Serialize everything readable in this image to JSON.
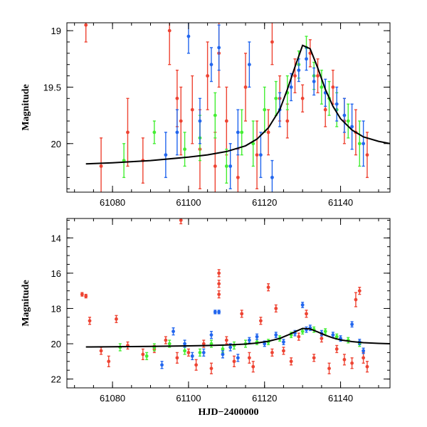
{
  "chart_data": [
    {
      "type": "scatter",
      "panel": "top",
      "title": "",
      "xlabel": "",
      "ylabel": "Magnitude",
      "xlim": [
        61068,
        61153
      ],
      "ylim": [
        20.43,
        18.93
      ],
      "y_inverted": true,
      "grid": false,
      "xticks": [
        61080,
        61100,
        61120,
        61140
      ],
      "yticks": [
        19,
        19.5,
        20
      ],
      "ytick_labels": [
        "19",
        "19.5",
        "20"
      ],
      "model_curve": {
        "name": "model",
        "color": "#000000",
        "x": [
          61073,
          61080,
          61090,
          61100,
          61105,
          61110,
          61115,
          61118,
          61121,
          61124,
          61126,
          61128,
          61130,
          61132,
          61134,
          61136,
          61138,
          61140,
          61143,
          61146,
          61150,
          61153
        ],
        "y": [
          20.18,
          20.17,
          20.15,
          20.12,
          20.1,
          20.07,
          20.02,
          19.96,
          19.86,
          19.7,
          19.52,
          19.32,
          19.13,
          19.16,
          19.33,
          19.52,
          19.67,
          19.78,
          19.88,
          19.94,
          19.98,
          20.0
        ]
      },
      "series": [
        {
          "name": "red",
          "color": "#ee4433",
          "x": [
            61073,
            61077,
            61084,
            61088,
            61095,
            61097,
            61098,
            61101,
            61103,
            61105,
            61107,
            61108,
            61110,
            61113,
            61115,
            61118,
            61121,
            61122,
            61124,
            61126,
            61128,
            61130,
            61132,
            61134,
            61136,
            61138,
            61141,
            61144,
            61147
          ],
          "y": [
            18.95,
            20.2,
            19.9,
            20.15,
            19.0,
            19.6,
            19.8,
            19.7,
            20.05,
            19.4,
            20.2,
            19.2,
            19.8,
            20.3,
            19.5,
            20.1,
            19.9,
            19.1,
            19.6,
            19.8,
            19.4,
            19.6,
            19.2,
            19.4,
            19.7,
            19.5,
            19.8,
            19.9,
            20.1
          ],
          "err": [
            0.15,
            0.25,
            0.3,
            0.2,
            0.3,
            0.25,
            0.3,
            0.3,
            0.35,
            0.3,
            0.3,
            0.3,
            0.3,
            0.25,
            0.3,
            0.3,
            0.2,
            0.2,
            0.2,
            0.15,
            0.15,
            0.12,
            0.12,
            0.15,
            0.15,
            0.15,
            0.2,
            0.2,
            0.2
          ]
        },
        {
          "name": "green",
          "color": "#44ee33",
          "x": [
            61083,
            61091,
            61099,
            61103,
            61107,
            61110,
            61114,
            61117,
            61120,
            61123,
            61126,
            61129,
            61131,
            61133,
            61135,
            61137,
            61139,
            61142,
            61145
          ],
          "y": [
            20.15,
            19.9,
            20.05,
            19.95,
            19.75,
            20.2,
            19.9,
            20.0,
            19.7,
            19.6,
            19.55,
            19.3,
            19.15,
            19.4,
            19.5,
            19.6,
            19.7,
            19.8,
            20.0
          ],
          "err": [
            0.15,
            0.1,
            0.15,
            0.2,
            0.2,
            0.15,
            0.2,
            0.2,
            0.2,
            0.15,
            0.15,
            0.12,
            0.1,
            0.12,
            0.15,
            0.15,
            0.15,
            0.15,
            0.2
          ]
        },
        {
          "name": "blue",
          "color": "#2266ee",
          "x": [
            61094,
            61097,
            61100,
            61103,
            61106,
            61108,
            61111,
            61113,
            61116,
            61119,
            61122,
            61124,
            61127,
            61129,
            61131,
            61133,
            61136,
            61139,
            61141,
            61143,
            61146
          ],
          "y": [
            20.1,
            19.9,
            19.05,
            19.8,
            19.3,
            19.15,
            20.2,
            19.9,
            19.3,
            20.1,
            20.3,
            19.7,
            19.5,
            19.35,
            19.25,
            19.45,
            19.55,
            19.65,
            19.75,
            19.85,
            20.0
          ],
          "err": [
            0.2,
            0.2,
            0.15,
            0.2,
            0.15,
            0.2,
            0.2,
            0.2,
            0.2,
            0.2,
            0.15,
            0.15,
            0.12,
            0.1,
            0.1,
            0.12,
            0.12,
            0.15,
            0.15,
            0.2,
            0.2
          ]
        }
      ]
    },
    {
      "type": "scatter",
      "panel": "bottom",
      "title": "",
      "xlabel": "HJD−2400000",
      "ylabel": "Magnitude",
      "xlim": [
        61068,
        61153
      ],
      "ylim": [
        22.5,
        12.9
      ],
      "y_inverted": true,
      "grid": false,
      "xticks": [
        61080,
        61100,
        61120,
        61140
      ],
      "yticks": [
        14,
        16,
        18,
        20,
        22
      ],
      "ytick_labels": [
        "14",
        "16",
        "18",
        "20",
        "22"
      ],
      "model_curve": {
        "name": "model",
        "color": "#000000",
        "x": [
          61073,
          61080,
          61090,
          61100,
          61105,
          61110,
          61115,
          61118,
          61121,
          61124,
          61126,
          61128,
          61130,
          61132,
          61134,
          61136,
          61138,
          61140,
          61143,
          61146,
          61150,
          61153
        ],
        "y": [
          20.18,
          20.17,
          20.15,
          20.12,
          20.1,
          20.07,
          20.02,
          19.96,
          19.86,
          19.7,
          19.52,
          19.32,
          19.13,
          19.16,
          19.33,
          19.52,
          19.67,
          19.78,
          19.88,
          19.94,
          19.98,
          20.0
        ]
      },
      "series": [
        {
          "name": "red",
          "color": "#ee4433",
          "x": [
            61072,
            61073,
            61074,
            61077,
            61079,
            61081,
            61084,
            61088,
            61091,
            61094,
            61097,
            61098,
            61100,
            61102,
            61104,
            61106,
            61108,
            61108,
            61108,
            61110,
            61112,
            61114,
            61116,
            61117,
            61119,
            61121,
            61122,
            61123,
            61125,
            61127,
            61129,
            61131,
            61133,
            61135,
            61137,
            61139,
            61141,
            61143,
            61144,
            61145,
            61146,
            61147
          ],
          "y": [
            17.2,
            17.3,
            18.7,
            20.4,
            21.0,
            18.6,
            20.1,
            20.6,
            20.3,
            19.8,
            20.8,
            13.0,
            20.5,
            21.2,
            20.0,
            21.4,
            16.0,
            16.6,
            17.2,
            19.8,
            21.0,
            18.3,
            20.8,
            21.3,
            18.7,
            16.8,
            20.5,
            18.0,
            20.4,
            21.0,
            19.6,
            18.3,
            20.8,
            19.7,
            21.4,
            20.3,
            20.9,
            21.1,
            17.5,
            17.0,
            20.8,
            21.3
          ],
          "err": [
            0.1,
            0.1,
            0.2,
            0.2,
            0.3,
            0.2,
            0.2,
            0.3,
            0.2,
            0.2,
            0.3,
            0.2,
            0.2,
            0.3,
            0.2,
            0.3,
            0.2,
            0.2,
            0.2,
            0.2,
            0.3,
            0.2,
            0.3,
            0.3,
            0.2,
            0.2,
            0.2,
            0.2,
            0.2,
            0.2,
            0.2,
            0.2,
            0.2,
            0.2,
            0.3,
            0.2,
            0.3,
            0.3,
            0.4,
            0.2,
            0.3,
            0.3
          ]
        },
        {
          "name": "green",
          "color": "#44ee33",
          "x": [
            61082,
            61089,
            61091,
            61095,
            61099,
            61103,
            61106,
            61109,
            61112,
            61115,
            61118,
            61121,
            61124,
            61127,
            61130,
            61133,
            61136,
            61139,
            61142,
            61145
          ],
          "y": [
            20.2,
            20.7,
            20.2,
            20.0,
            20.4,
            20.5,
            20.0,
            20.3,
            20.1,
            20.0,
            19.9,
            19.9,
            19.7,
            19.5,
            19.3,
            19.2,
            19.3,
            19.6,
            19.8,
            20.0
          ],
          "err": [
            0.2,
            0.2,
            0.2,
            0.2,
            0.2,
            0.2,
            0.2,
            0.2,
            0.2,
            0.2,
            0.15,
            0.15,
            0.15,
            0.15,
            0.15,
            0.15,
            0.15,
            0.15,
            0.15,
            0.15
          ]
        },
        {
          "name": "blue",
          "color": "#2266ee",
          "x": [
            61093,
            61096,
            61099,
            61101,
            61104,
            61106,
            61107,
            61108,
            61109,
            61111,
            61113,
            61116,
            61118,
            61120,
            61123,
            61125,
            61128,
            61130,
            61131,
            61132,
            61135,
            61138,
            61140,
            61143,
            61145,
            61146
          ],
          "y": [
            21.2,
            19.3,
            20.0,
            20.7,
            20.5,
            19.5,
            18.2,
            18.2,
            20.6,
            20.2,
            20.8,
            19.8,
            19.6,
            20.0,
            19.5,
            19.9,
            19.4,
            17.8,
            19.2,
            19.1,
            19.4,
            19.5,
            19.7,
            18.9,
            19.9,
            20.4
          ],
          "err": [
            0.2,
            0.2,
            0.2,
            0.2,
            0.2,
            0.2,
            0.1,
            0.1,
            0.2,
            0.2,
            0.2,
            0.15,
            0.15,
            0.15,
            0.15,
            0.15,
            0.15,
            0.15,
            0.15,
            0.15,
            0.15,
            0.15,
            0.15,
            0.15,
            0.15,
            0.15
          ]
        }
      ]
    }
  ]
}
